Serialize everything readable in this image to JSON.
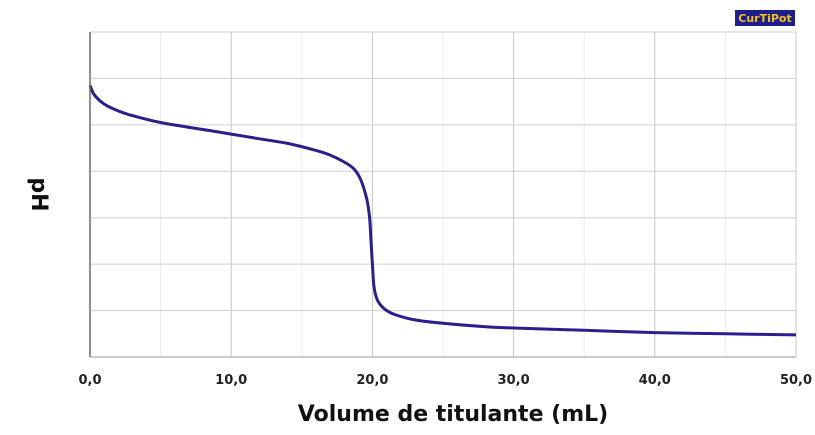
{
  "brand": {
    "label": "CurTiPot",
    "bg_color": "#1d1d8c",
    "text_color": "#f3c21a"
  },
  "chart_data": {
    "type": "line",
    "xlabel": "Volume de titulante (mL)",
    "ylabel": "pH",
    "xlim": [
      0,
      50
    ],
    "ylim": [
      0,
      14
    ],
    "x_ticks": [
      "0,0",
      "10,0",
      "20,0",
      "30,0",
      "40,0",
      "50,0"
    ],
    "x_tick_values": [
      0,
      10,
      20,
      30,
      40,
      50
    ],
    "y_gridlines": [
      2,
      4,
      6,
      8,
      10,
      12,
      14
    ],
    "y_tick_labels_visible": false,
    "grid": true,
    "series": [
      {
        "color": "#2a1f8c",
        "x": [
          0,
          0.3,
          1,
          2,
          3,
          5,
          8,
          10,
          12,
          14,
          16,
          17,
          18,
          18.7,
          19.2,
          19.6,
          19.8,
          19.9,
          20.0,
          20.05,
          20.1,
          20.2,
          20.4,
          20.8,
          21.5,
          23,
          25,
          28,
          30,
          35,
          40,
          45,
          50
        ],
        "y": [
          11.7,
          11.3,
          10.9,
          10.6,
          10.4,
          10.1,
          9.8,
          9.6,
          9.4,
          9.2,
          8.9,
          8.7,
          8.4,
          8.1,
          7.6,
          6.8,
          6.0,
          5.0,
          4.0,
          3.5,
          3.1,
          2.75,
          2.4,
          2.1,
          1.85,
          1.6,
          1.45,
          1.3,
          1.25,
          1.15,
          1.05,
          1.0,
          0.95
        ]
      }
    ]
  }
}
